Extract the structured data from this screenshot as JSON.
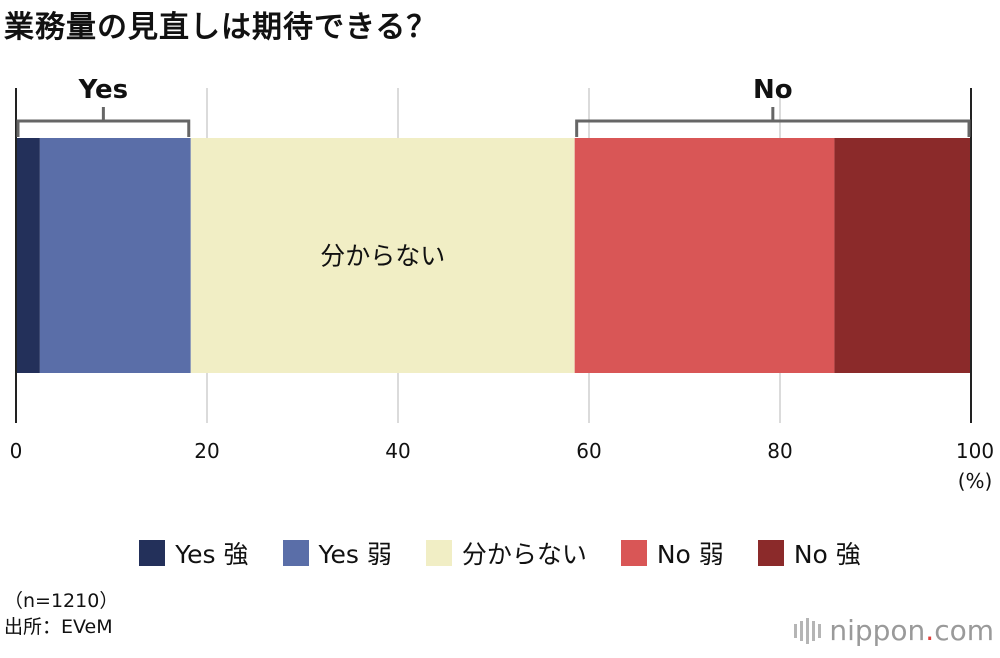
{
  "title": "業務量の見直しは期待できる？",
  "chart_data": {
    "type": "bar",
    "orientation": "horizontal",
    "stacked": true,
    "series": [
      {
        "name": "Yes 強",
        "value": 2.5,
        "color": "#23305a"
      },
      {
        "name": "Yes 弱",
        "value": 15.8,
        "color": "#5a6ea8"
      },
      {
        "name": "分からない",
        "value": 40.2,
        "color": "#f1eec5"
      },
      {
        "name": "No 弱",
        "value": 27.2,
        "color": "#d95656"
      },
      {
        "name": "No 強",
        "value": 14.3,
        "color": "#8b2a2a"
      }
    ],
    "segment_labels": [
      "",
      "",
      "分からない",
      "",
      ""
    ],
    "xlim": [
      0,
      100
    ],
    "xticks": [
      "0",
      "20",
      "40",
      "60",
      "80",
      "100"
    ],
    "xunit": "(%)",
    "grid": true,
    "brackets": [
      {
        "label": "Yes",
        "start": 0,
        "end": 18.3
      },
      {
        "label": "No",
        "start": 58.5,
        "end": 100
      }
    ]
  },
  "footnote": {
    "sample": "（n=1210）",
    "source": "出所：EVeM"
  },
  "logo": {
    "main": "nippon",
    "dot": ".",
    "suffix": "com"
  }
}
